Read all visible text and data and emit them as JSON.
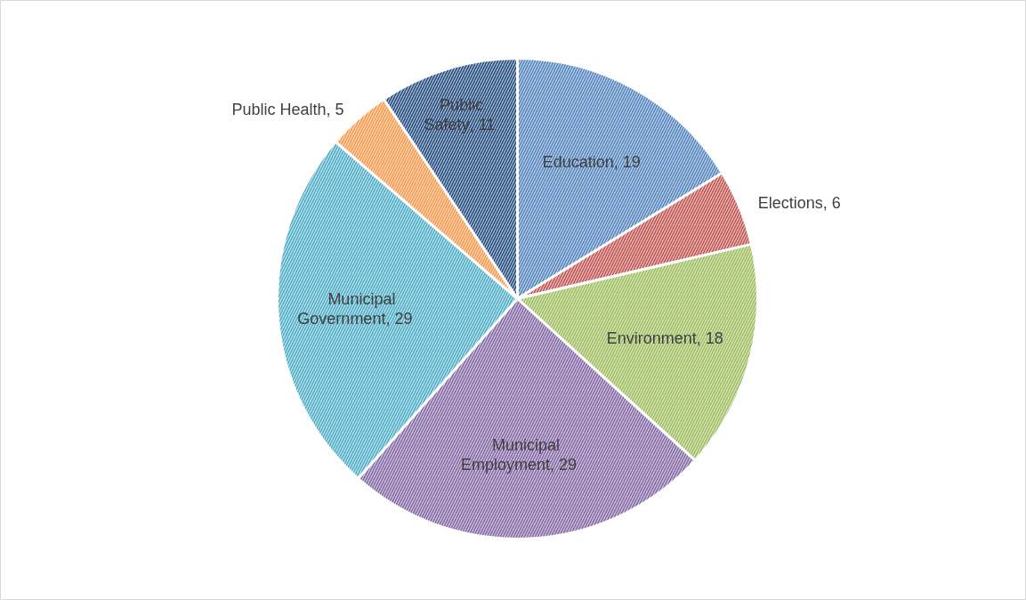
{
  "chart_data": {
    "type": "pie",
    "categories": [
      "Education",
      "Elections",
      "Environment",
      "Municipal Employment",
      "Municipal Government",
      "Public Health",
      "Public Safety"
    ],
    "values": [
      19,
      6,
      18,
      29,
      29,
      5,
      11
    ],
    "colors": [
      "#4f81bd",
      "#c0504d",
      "#9bbb59",
      "#8064a2",
      "#4bacc6",
      "#f79646",
      "#1f497d"
    ],
    "value_labels": [
      ", 19",
      ", 6",
      ", 18",
      ", 29",
      ", 29",
      ", 5",
      ", 11"
    ]
  }
}
